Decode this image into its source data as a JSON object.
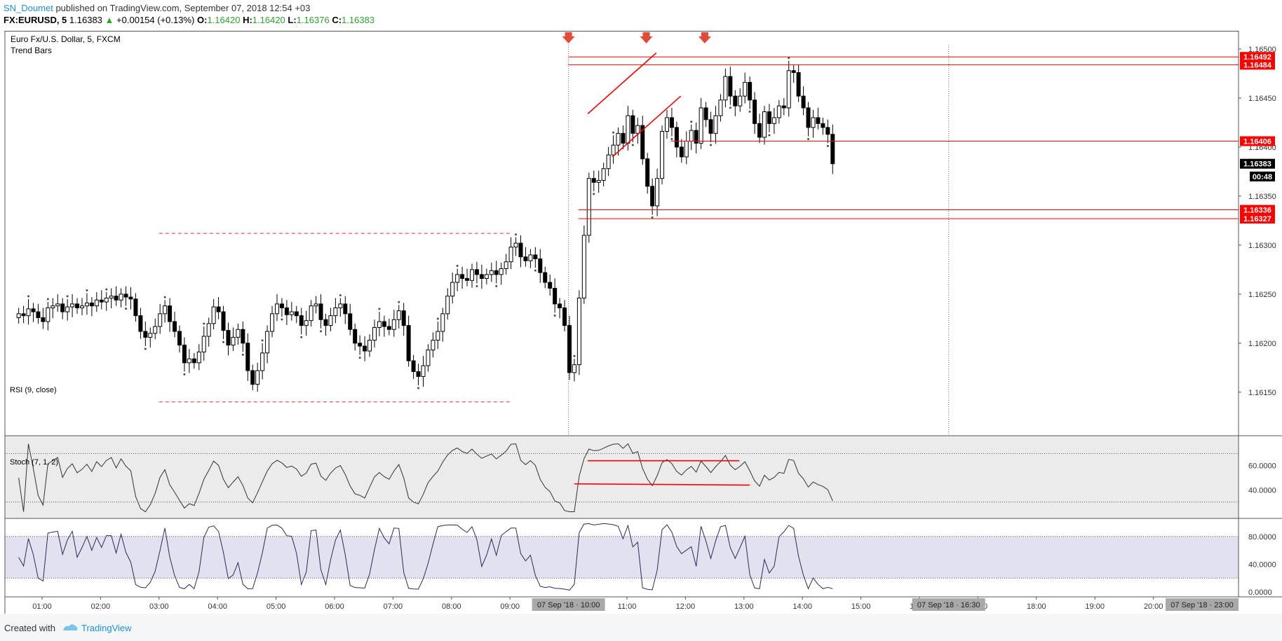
{
  "header": {
    "user": "SN_Doumet",
    "published": "published on TradingView.com, September 07, 2018 12:54 +03",
    "symbol": "FX:EURUSD, 5",
    "last": "1.16383",
    "change": "+0.00154 (+0.13%)",
    "o_label": "O:",
    "o_val": "1.16420",
    "h_label": "H:",
    "h_val": "1.16420",
    "l_label": "L:",
    "l_val": "1.16376",
    "c_label": "C:",
    "c_val": "1.16383"
  },
  "legend": {
    "title": "Euro Fx/U.S. Dollar, 5, FXCM",
    "subtitle": "Trend Bars",
    "rsi": "RSI (9, close)",
    "stoch": "Stoch (7, 1, 2)"
  },
  "footer": {
    "created": "Created with",
    "brand": "TradingView"
  },
  "colors": {
    "bull": "#ffffff",
    "bear": "#000000",
    "level": "#ff0000",
    "badge": "#ff0000",
    "rsi_bg": "#ebebeb",
    "stoch_bg": "#e1e1ef"
  },
  "chart_data": {
    "type": "candlestick",
    "price_ticks": [
      "1.16500",
      "1.16450",
      "1.16400",
      "1.16350",
      "1.16300",
      "1.16250",
      "1.16200",
      "1.16150"
    ],
    "price_tick_values": [
      1.165,
      1.1645,
      1.164,
      1.1635,
      1.163,
      1.1625,
      1.162,
      1.1615
    ],
    "price_ylim": [
      1.16122,
      1.16515
    ],
    "time_ticks": [
      "01:00",
      "02:00",
      "03:00",
      "04:00",
      "05:00",
      "06:00",
      "07:00",
      "08:00",
      "09:00",
      "11:00",
      "12:00",
      "13:00",
      "14:00",
      "15:00",
      "16:00",
      "17:00",
      "18:00",
      "19:00",
      "20:00"
    ],
    "time_tick_hours": [
      1,
      2,
      3,
      4,
      5,
      6,
      7,
      8,
      9,
      11,
      12,
      13,
      14,
      15,
      16,
      17,
      18,
      19,
      20
    ],
    "crosshair_labels": [
      "07 Sep '18 · 10:00",
      "07 Sep '18 · 16:30",
      "07 Sep '18 · 23:00"
    ],
    "crosshair_hours": [
      10,
      16.5,
      23
    ],
    "price_badges": [
      {
        "label": "1.16492",
        "value": 1.16492,
        "color": "#ff0000"
      },
      {
        "label": "1.16484",
        "value": 1.16484,
        "color": "#ff0000"
      },
      {
        "label": "1.16406",
        "value": 1.16406,
        "color": "#ff0000"
      },
      {
        "label": "1.16383",
        "value": 1.16383,
        "color": "#000000"
      },
      {
        "label": "00:48",
        "value": 1.1637,
        "color": "#000000"
      },
      {
        "label": "1.16336",
        "value": 1.16336,
        "color": "#ff0000"
      },
      {
        "label": "1.16327",
        "value": 1.16327,
        "color": "#ff0000"
      }
    ],
    "horizontal_levels": [
      {
        "value": 1.16492,
        "from_hour": 10.0
      },
      {
        "value": 1.16484,
        "from_hour": 10.0
      },
      {
        "value": 1.16406,
        "from_hour": 11.75
      },
      {
        "value": 1.16336,
        "from_hour": 10.17
      },
      {
        "value": 1.16327,
        "from_hour": 10.17
      }
    ],
    "range_box": {
      "top": 1.16312,
      "bottom": 1.1614,
      "from_hour": 3.0,
      "to_hour": 9.0
    },
    "channel": [
      {
        "x1": 10.33,
        "y1": 1.16434,
        "x2": 11.5,
        "y2": 1.16496
      },
      {
        "x1": 10.75,
        "y1": 1.1639,
        "x2": 11.92,
        "y2": 1.16452
      }
    ],
    "arrows_hours": [
      10.0,
      11.33,
      12.33
    ],
    "candles_x_start_hour": 0.6,
    "candle_minutes": 5,
    "closes": [
      1.1623,
      1.16228,
      1.16235,
      1.16232,
      1.16226,
      1.16222,
      1.16236,
      1.16238,
      1.1624,
      1.16232,
      1.16237,
      1.1624,
      1.16236,
      1.16238,
      1.16241,
      1.16238,
      1.16244,
      1.16242,
      1.16246,
      1.16248,
      1.16244,
      1.1625,
      1.16247,
      1.16245,
      1.16228,
      1.16212,
      1.16206,
      1.1621,
      1.16217,
      1.1623,
      1.16238,
      1.16222,
      1.16212,
      1.16198,
      1.1618,
      1.16184,
      1.1618,
      1.16191,
      1.16207,
      1.1622,
      1.16237,
      1.16232,
      1.16213,
      1.16198,
      1.16206,
      1.16214,
      1.162,
      1.16172,
      1.16158,
      1.16172,
      1.1619,
      1.16212,
      1.1623,
      1.1624,
      1.16236,
      1.16229,
      1.16232,
      1.16228,
      1.16218,
      1.16223,
      1.16238,
      1.1624,
      1.16224,
      1.16218,
      1.16228,
      1.16236,
      1.1624,
      1.1623,
      1.16214,
      1.162,
      1.16197,
      1.16192,
      1.16203,
      1.16216,
      1.16222,
      1.16217,
      1.16214,
      1.16224,
      1.16233,
      1.16218,
      1.16182,
      1.16171,
      1.16166,
      1.16177,
      1.16193,
      1.16203,
      1.16212,
      1.1623,
      1.16248,
      1.16262,
      1.1627,
      1.16266,
      1.16264,
      1.16275,
      1.1627,
      1.16266,
      1.1627,
      1.16274,
      1.1627,
      1.16276,
      1.16283,
      1.16298,
      1.16302,
      1.16288,
      1.16284,
      1.1629,
      1.16286,
      1.16272,
      1.16262,
      1.16256,
      1.1624,
      1.16236,
      1.16218,
      1.1617,
      1.16178,
      1.16246,
      1.1631,
      1.16368,
      1.16364,
      1.16366,
      1.16378,
      1.16392,
      1.16402,
      1.16414,
      1.16404,
      1.16432,
      1.16414,
      1.16422,
      1.16388,
      1.1636,
      1.1634,
      1.16368,
      1.16416,
      1.1643,
      1.1642,
      1.164,
      1.1639,
      1.16406,
      1.16417,
      1.16404,
      1.1644,
      1.16428,
      1.16414,
      1.16432,
      1.16448,
      1.16472,
      1.16452,
      1.16442,
      1.16452,
      1.16466,
      1.16448,
      1.16424,
      1.1641,
      1.16436,
      1.16424,
      1.1643,
      1.16442,
      1.1644,
      1.16478,
      1.16476,
      1.16452,
      1.1644,
      1.1642,
      1.1643,
      1.16424,
      1.1642,
      1.16413,
      1.16383
    ],
    "rsi": {
      "ticks": [
        "60.0000",
        "40.0000"
      ],
      "tick_values": [
        60,
        40
      ],
      "ylim": [
        20,
        80
      ],
      "upper_band": 70,
      "lower_band": 30,
      "trendlines": [
        {
          "x1": 10.33,
          "y1": 64,
          "x2": 12.92,
          "y2": 64
        },
        {
          "x1": 10.1,
          "y1": 45,
          "x2": 13.1,
          "y2": 44
        }
      ]
    },
    "stoch": {
      "ticks": [
        "80.0000",
        "40.0000",
        "0.0000"
      ],
      "tick_values": [
        80,
        40,
        0
      ],
      "ylim": [
        -5,
        100
      ],
      "upper_band": 80,
      "lower_band": 20
    }
  }
}
